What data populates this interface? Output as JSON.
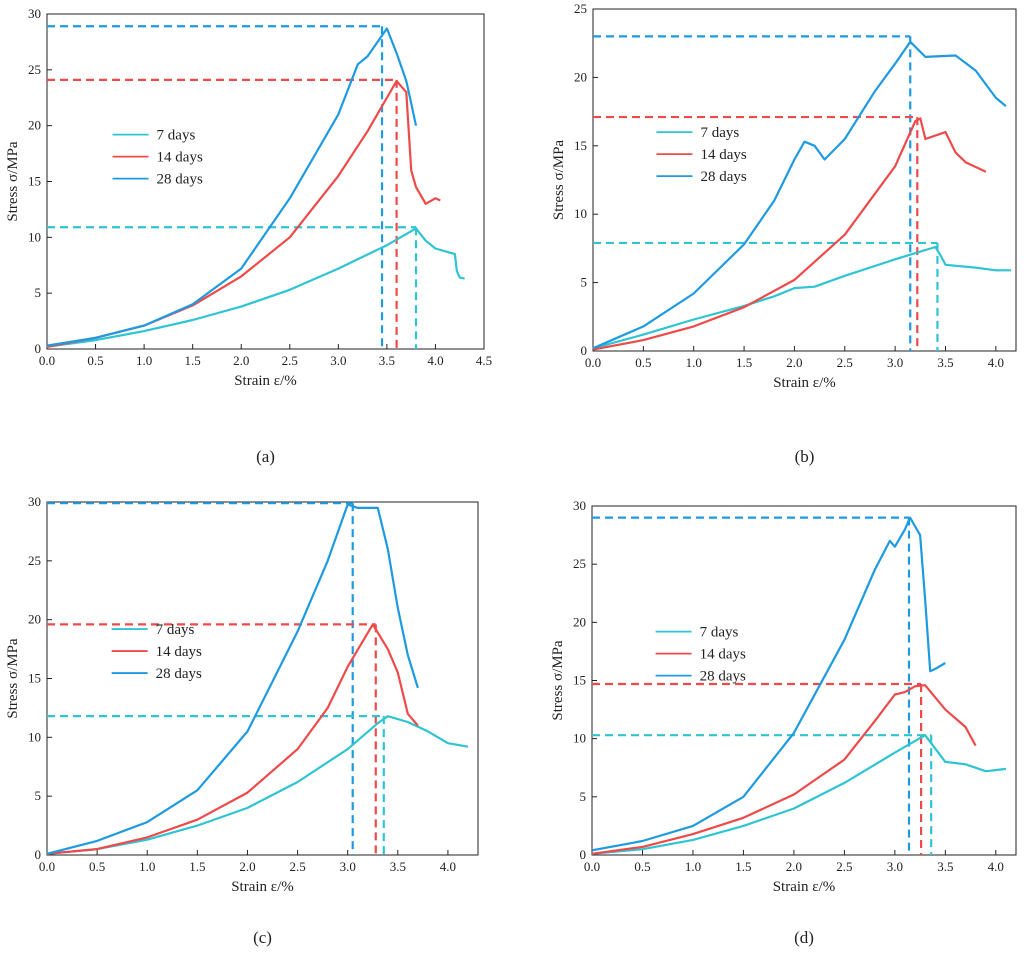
{
  "colors": {
    "d7": "#2ec4d2",
    "d14": "#ee4a4a",
    "d28": "#1e9ae0"
  },
  "chart_data": [
    {
      "type": "line",
      "panel_label": "(a)",
      "xlabel": "Strain ε/%",
      "ylabel": "Stress σ/MPa",
      "xlim": [
        0,
        4.5
      ],
      "ylim": [
        0,
        30
      ],
      "xticks": [
        0,
        0.5,
        1,
        1.5,
        2,
        2.5,
        3,
        3.5,
        4,
        4.5
      ],
      "xtick_labels": [
        "0.0",
        "0.5",
        "1.0",
        "1.5",
        "2.0",
        "2.5",
        "3.0",
        "3.5",
        "4.0",
        "4.5"
      ],
      "yticks": [
        0,
        5,
        10,
        15,
        20,
        25,
        30
      ],
      "ytick_labels": [
        "0",
        "5",
        "10",
        "15",
        "20",
        "25",
        "30"
      ],
      "legend": [
        "7 days",
        "14 days",
        "28 days"
      ],
      "series": [
        {
          "name": "7 days",
          "color": "#2ec4d2",
          "x": [
            0,
            0.5,
            1,
            1.5,
            2,
            2.5,
            3,
            3.5,
            3.8,
            3.9,
            4.0,
            4.2,
            4.22,
            4.25,
            4.3
          ],
          "y": [
            0.2,
            0.8,
            1.6,
            2.6,
            3.8,
            5.3,
            7.2,
            9.3,
            10.8,
            9.7,
            9.0,
            8.5,
            7.0,
            6.4,
            6.3
          ]
        },
        {
          "name": "14 days",
          "color": "#ee4a4a",
          "x": [
            0,
            0.5,
            1,
            1.5,
            2,
            2.5,
            3,
            3.3,
            3.6,
            3.7,
            3.75,
            3.8,
            3.9,
            4.0,
            4.05
          ],
          "y": [
            0.2,
            1.0,
            2.1,
            3.9,
            6.5,
            10.0,
            15.5,
            19.5,
            24.0,
            23.0,
            16.0,
            14.5,
            13.0,
            13.5,
            13.3
          ]
        },
        {
          "name": "28 days",
          "color": "#1e9ae0",
          "x": [
            0,
            0.5,
            1,
            1.5,
            2,
            2.5,
            3,
            3.2,
            3.3,
            3.5,
            3.6,
            3.7,
            3.75,
            3.8
          ],
          "y": [
            0.3,
            1.0,
            2.1,
            4.0,
            7.2,
            13.5,
            21.0,
            25.5,
            26.2,
            28.7,
            26.5,
            24.0,
            22.0,
            20.0
          ]
        }
      ],
      "reference_lines": [
        {
          "series": "28 days",
          "x": 3.45,
          "y": 28.9
        },
        {
          "series": "14 days",
          "x": 3.6,
          "y": 24.1
        },
        {
          "series": "7 days",
          "x": 3.8,
          "y": 10.9
        }
      ]
    },
    {
      "type": "line",
      "panel_label": "(b)",
      "xlabel": "Strain ε/%",
      "ylabel": "Stress σ/MPa",
      "xlim": [
        0,
        4.2
      ],
      "ylim": [
        0,
        25
      ],
      "xticks": [
        0,
        0.5,
        1,
        1.5,
        2,
        2.5,
        3,
        3.5,
        4
      ],
      "xtick_labels": [
        "0.0",
        "0.5",
        "1.0",
        "1.5",
        "2.0",
        "2.5",
        "3.0",
        "3.5",
        "4.0"
      ],
      "yticks": [
        0,
        5,
        10,
        15,
        20,
        25
      ],
      "ytick_labels": [
        "0",
        "5",
        "10",
        "15",
        "20",
        "25"
      ],
      "legend": [
        "7 days",
        "14 days",
        "28 days"
      ],
      "series": [
        {
          "name": "7 days",
          "color": "#2ec4d2",
          "x": [
            0,
            0.5,
            1,
            1.5,
            1.8,
            2.0,
            2.2,
            2.5,
            3.0,
            3.4,
            3.45,
            3.5,
            3.8,
            4.0,
            4.15
          ],
          "y": [
            0.2,
            1.2,
            2.3,
            3.3,
            4.0,
            4.6,
            4.7,
            5.5,
            6.7,
            7.6,
            7.0,
            6.3,
            6.1,
            5.9,
            5.9
          ]
        },
        {
          "name": "14 days",
          "color": "#ee4a4a",
          "x": [
            0,
            0.5,
            1,
            1.5,
            2,
            2.5,
            3,
            3.2,
            3.25,
            3.3,
            3.5,
            3.6,
            3.7,
            3.9
          ],
          "y": [
            0.1,
            0.8,
            1.8,
            3.2,
            5.2,
            8.5,
            13.5,
            16.8,
            17.0,
            15.5,
            16.0,
            14.5,
            13.8,
            13.1
          ]
        },
        {
          "name": "28 days",
          "color": "#1e9ae0",
          "x": [
            0,
            0.5,
            1,
            1.5,
            1.8,
            2.0,
            2.1,
            2.2,
            2.3,
            2.5,
            2.8,
            3.0,
            3.15,
            3.3,
            3.6,
            3.8,
            4.0,
            4.1
          ],
          "y": [
            0.2,
            1.8,
            4.2,
            7.8,
            11.0,
            14.0,
            15.3,
            15.0,
            14.0,
            15.5,
            19.0,
            21.0,
            22.6,
            21.5,
            21.6,
            20.5,
            18.5,
            17.9
          ]
        }
      ],
      "reference_lines": [
        {
          "series": "28 days",
          "x": 3.15,
          "y": 23.0
        },
        {
          "series": "14 days",
          "x": 3.22,
          "y": 17.1
        },
        {
          "series": "7 days",
          "x": 3.42,
          "y": 7.9
        }
      ]
    },
    {
      "type": "line",
      "panel_label": "(c)",
      "xlabel": "Strain ε/%",
      "ylabel": "Stress σ/MPa",
      "xlim": [
        0,
        4.3
      ],
      "ylim": [
        0,
        30
      ],
      "xticks": [
        0,
        0.5,
        1,
        1.5,
        2,
        2.5,
        3,
        3.5,
        4
      ],
      "xtick_labels": [
        "0.0",
        "0.5",
        "1.0",
        "1.5",
        "2.0",
        "2.5",
        "3.0",
        "3.5",
        "4.0"
      ],
      "yticks": [
        0,
        5,
        10,
        15,
        20,
        25,
        30
      ],
      "ytick_labels": [
        "0",
        "5",
        "10",
        "15",
        "20",
        "25",
        "30"
      ],
      "legend": [
        "7 days",
        "14 days",
        "28 days"
      ],
      "series": [
        {
          "name": "7 days",
          "color": "#2ec4d2",
          "x": [
            0,
            0.5,
            1,
            1.5,
            2,
            2.5,
            3,
            3.3,
            3.4,
            3.6,
            3.8,
            4.0,
            4.2
          ],
          "y": [
            0.1,
            0.5,
            1.3,
            2.5,
            4.0,
            6.2,
            9.0,
            11.2,
            11.8,
            11.3,
            10.5,
            9.5,
            9.2
          ]
        },
        {
          "name": "14 days",
          "color": "#ee4a4a",
          "x": [
            0,
            0.5,
            1,
            1.5,
            2,
            2.5,
            2.8,
            3.0,
            3.25,
            3.4,
            3.5,
            3.6,
            3.7
          ],
          "y": [
            0.1,
            0.5,
            1.5,
            3.0,
            5.3,
            9.0,
            12.5,
            16.0,
            19.6,
            17.5,
            15.5,
            12.0,
            11.0
          ]
        },
        {
          "name": "28 days",
          "color": "#1e9ae0",
          "x": [
            0,
            0.5,
            1,
            1.5,
            2,
            2.5,
            2.8,
            3.0,
            3.1,
            3.3,
            3.4,
            3.5,
            3.6,
            3.7
          ],
          "y": [
            0.1,
            1.2,
            2.8,
            5.5,
            10.5,
            19.0,
            25.0,
            29.8,
            29.5,
            29.5,
            26.0,
            21.0,
            17.0,
            14.2
          ]
        }
      ],
      "reference_lines": [
        {
          "series": "28 days",
          "x": 3.05,
          "y": 29.9
        },
        {
          "series": "14 days",
          "x": 3.28,
          "y": 19.6
        },
        {
          "series": "7 days",
          "x": 3.36,
          "y": 11.8
        }
      ]
    },
    {
      "type": "line",
      "panel_label": "(d)",
      "xlabel": "Strain ε/%",
      "ylabel": "Stress σ/MPa",
      "xlim": [
        0,
        4.2
      ],
      "ylim": [
        0,
        30
      ],
      "xticks": [
        0,
        0.5,
        1,
        1.5,
        2,
        2.5,
        3,
        3.5,
        4
      ],
      "xtick_labels": [
        "0.0",
        "0.5",
        "1.0",
        "1.5",
        "2.0",
        "2.5",
        "3.0",
        "3.5",
        "4.0"
      ],
      "yticks": [
        0,
        5,
        10,
        15,
        20,
        25,
        30
      ],
      "ytick_labels": [
        "0",
        "5",
        "10",
        "15",
        "20",
        "25",
        "30"
      ],
      "legend": [
        "7 days",
        "14 days",
        "28 days"
      ],
      "series": [
        {
          "name": "7 days",
          "color": "#2ec4d2",
          "x": [
            0,
            0.5,
            1,
            1.5,
            2,
            2.5,
            3,
            3.3,
            3.5,
            3.7,
            3.9,
            4.0,
            4.1
          ],
          "y": [
            0.1,
            0.5,
            1.3,
            2.5,
            4.0,
            6.2,
            8.8,
            10.3,
            8.0,
            7.8,
            7.2,
            7.3,
            7.4
          ]
        },
        {
          "name": "14 days",
          "color": "#ee4a4a",
          "x": [
            0,
            0.5,
            1,
            1.5,
            2,
            2.5,
            2.8,
            3.0,
            3.1,
            3.2,
            3.3,
            3.5,
            3.7,
            3.8
          ],
          "y": [
            0.1,
            0.7,
            1.8,
            3.2,
            5.2,
            8.2,
            11.5,
            13.8,
            14.0,
            14.5,
            14.6,
            12.5,
            11.0,
            9.4
          ]
        },
        {
          "name": "28 days",
          "color": "#1e9ae0",
          "x": [
            0,
            0.5,
            1,
            1.5,
            2,
            2.5,
            2.8,
            2.95,
            3.0,
            3.1,
            3.15,
            3.25,
            3.3,
            3.35,
            3.4,
            3.5
          ],
          "y": [
            0.4,
            1.2,
            2.5,
            5.0,
            10.5,
            18.5,
            24.5,
            27.0,
            26.5,
            28.0,
            29.0,
            27.5,
            22.0,
            15.8,
            16.0,
            16.5
          ]
        }
      ],
      "reference_lines": [
        {
          "series": "28 days",
          "x": 3.14,
          "y": 29.0
        },
        {
          "series": "14 days",
          "x": 3.26,
          "y": 14.7
        },
        {
          "series": "7 days",
          "x": 3.36,
          "y": 10.3
        }
      ]
    }
  ]
}
